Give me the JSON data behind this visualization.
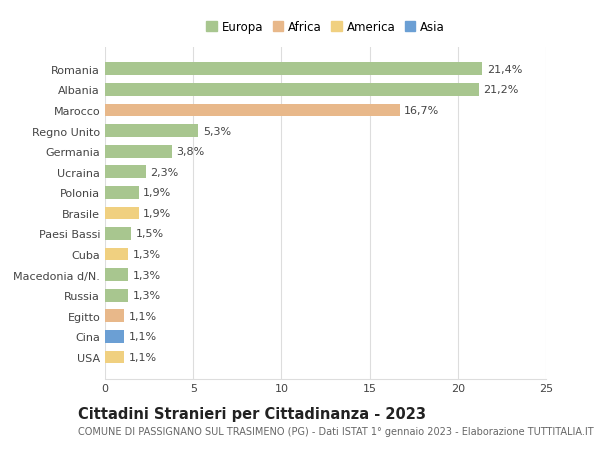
{
  "categories": [
    "Romania",
    "Albania",
    "Marocco",
    "Regno Unito",
    "Germania",
    "Ucraina",
    "Polonia",
    "Brasile",
    "Paesi Bassi",
    "Cuba",
    "Macedonia d/N.",
    "Russia",
    "Egitto",
    "Cina",
    "USA"
  ],
  "values": [
    21.4,
    21.2,
    16.7,
    5.3,
    3.8,
    2.3,
    1.9,
    1.9,
    1.5,
    1.3,
    1.3,
    1.3,
    1.1,
    1.1,
    1.1
  ],
  "labels": [
    "21,4%",
    "21,2%",
    "16,7%",
    "5,3%",
    "3,8%",
    "2,3%",
    "1,9%",
    "1,9%",
    "1,5%",
    "1,3%",
    "1,3%",
    "1,3%",
    "1,1%",
    "1,1%",
    "1,1%"
  ],
  "continents": [
    "Europa",
    "Europa",
    "Africa",
    "Europa",
    "Europa",
    "Europa",
    "Europa",
    "America",
    "Europa",
    "America",
    "Europa",
    "Europa",
    "Africa",
    "Asia",
    "America"
  ],
  "continent_colors": {
    "Europa": "#a8c68f",
    "Africa": "#e8b88a",
    "America": "#f0d080",
    "Asia": "#6b9fd4"
  },
  "legend_items": [
    "Europa",
    "Africa",
    "America",
    "Asia"
  ],
  "legend_colors": [
    "#a8c68f",
    "#e8b88a",
    "#f0d080",
    "#6b9fd4"
  ],
  "xlim": [
    0,
    25
  ],
  "xticks": [
    0,
    5,
    10,
    15,
    20,
    25
  ],
  "title": "Cittadini Stranieri per Cittadinanza - 2023",
  "subtitle": "COMUNE DI PASSIGNANO SUL TRASIMENO (PG) - Dati ISTAT 1° gennaio 2023 - Elaborazione TUTTITALIA.IT",
  "background_color": "#ffffff",
  "grid_color": "#dddddd",
  "bar_height": 0.62,
  "title_fontsize": 10.5,
  "subtitle_fontsize": 7.0,
  "label_fontsize": 8.0,
  "tick_fontsize": 8.0,
  "legend_fontsize": 8.5
}
